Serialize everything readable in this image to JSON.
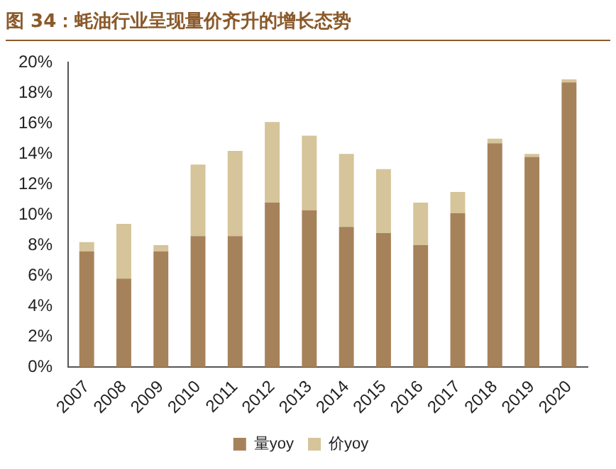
{
  "chart_data": {
    "type": "bar",
    "title": "图 34：蚝油行业呈现量价齐升的增长态势",
    "stacked": true,
    "grid": false,
    "legend": "bottom",
    "categories": [
      "2007",
      "2008",
      "2009",
      "2010",
      "2011",
      "2012",
      "2013",
      "2014",
      "2015",
      "2016",
      "2017",
      "2018",
      "2019",
      "2020"
    ],
    "series": [
      {
        "name": "量yoy",
        "color": "#a6825a",
        "values": [
          7.6,
          5.8,
          7.6,
          8.6,
          8.6,
          10.8,
          10.3,
          9.2,
          8.8,
          8.0,
          10.1,
          14.7,
          13.8,
          18.7
        ]
      },
      {
        "name": "价yoy",
        "color": "#d6c49a",
        "values": [
          0.6,
          3.6,
          0.4,
          4.7,
          5.6,
          5.3,
          4.9,
          4.8,
          4.2,
          2.8,
          1.4,
          0.3,
          0.2,
          0.2
        ]
      }
    ],
    "ylim": [
      0,
      20
    ],
    "yticks": [
      {
        "value": 0,
        "label": "0%"
      },
      {
        "value": 2,
        "label": "2%"
      },
      {
        "value": 4,
        "label": "4%"
      },
      {
        "value": 6,
        "label": "6%"
      },
      {
        "value": 8,
        "label": "8%"
      },
      {
        "value": 10,
        "label": "10%"
      },
      {
        "value": 12,
        "label": "12%"
      },
      {
        "value": 14,
        "label": "14%"
      },
      {
        "value": 16,
        "label": "16%"
      },
      {
        "value": 18,
        "label": "18%"
      },
      {
        "value": 20,
        "label": "20%"
      }
    ]
  }
}
